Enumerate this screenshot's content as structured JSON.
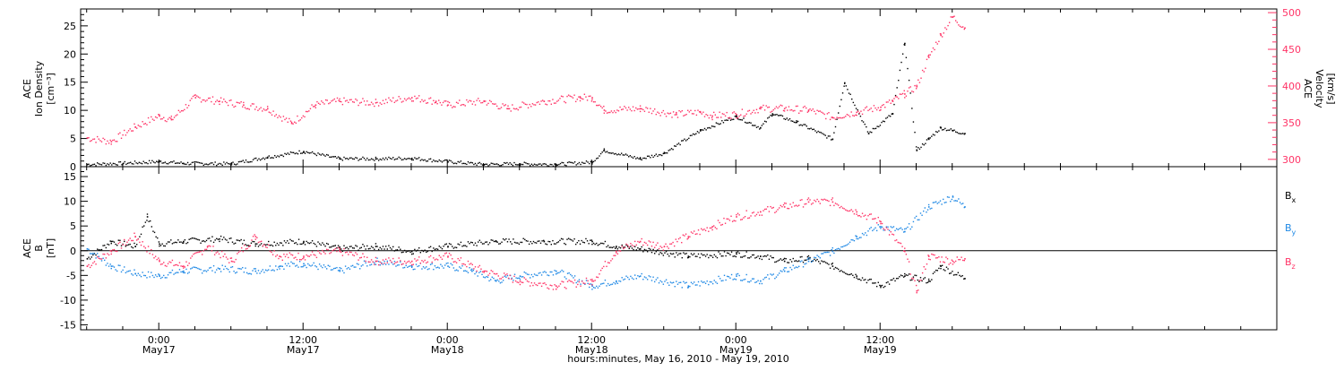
{
  "chart_data": [
    {
      "type": "scatter",
      "panel": "top",
      "ylabel_lines": [
        "ACE",
        "Ion Density",
        "[cm⁻³]"
      ],
      "ylim": [
        0,
        28
      ],
      "yticks": [
        0,
        5,
        10,
        15,
        20,
        25
      ],
      "y2label_lines": [
        "ACE",
        "Velocity",
        "[km/s]"
      ],
      "y2lim": [
        290,
        505
      ],
      "y2ticks": [
        300,
        350,
        400,
        450,
        500
      ],
      "xlim_hours": [
        -6.5,
        93
      ],
      "series": [
        {
          "name": "",
          "axis": "left",
          "color": "#000000",
          "x": [
            -6,
            -3,
            0,
            2,
            6,
            9,
            12,
            15,
            18,
            21,
            24,
            27,
            30,
            33,
            36,
            37,
            40,
            42,
            45,
            48,
            50,
            51,
            53,
            56,
            57,
            59,
            61,
            62,
            63,
            64,
            65,
            66,
            67
          ],
          "y": [
            0.5,
            0.7,
            1.0,
            0.7,
            0.6,
            1.8,
            2.8,
            1.5,
            1.5,
            1.6,
            1.0,
            0.5,
            0.6,
            0.5,
            0.9,
            3.0,
            1.5,
            2.5,
            6.5,
            9.0,
            7.0,
            9.5,
            8.0,
            5.0,
            15.0,
            6.0,
            9.5,
            22.0,
            3.0,
            5.0,
            7.0,
            6.5,
            6.0
          ]
        },
        {
          "name": "",
          "axis": "right",
          "color": "#ff3366",
          "x": [
            -6,
            -4,
            -2,
            0,
            1,
            3,
            5,
            7,
            9,
            11,
            13,
            15,
            18,
            21,
            23,
            24,
            27,
            29,
            32,
            35,
            36,
            37,
            40,
            43,
            45,
            46,
            48,
            50,
            52,
            54,
            56,
            58,
            60,
            61,
            62,
            63,
            64,
            65,
            66,
            67
          ],
          "y": [
            330,
            325,
            345,
            360,
            355,
            385,
            380,
            375,
            370,
            350,
            375,
            380,
            378,
            385,
            380,
            375,
            380,
            370,
            380,
            385,
            385,
            368,
            370,
            362,
            365,
            360,
            362,
            370,
            370,
            368,
            358,
            365,
            372,
            380,
            390,
            400,
            440,
            470,
            495,
            480
          ]
        }
      ]
    },
    {
      "type": "scatter",
      "panel": "bottom",
      "ylabel_lines": [
        "ACE",
        "B",
        "[nT]"
      ],
      "ylim": [
        -16,
        17
      ],
      "yticks": [
        -15,
        -10,
        -5,
        0,
        5,
        10,
        15
      ],
      "xlim_hours": [
        -6.5,
        93
      ],
      "series": [
        {
          "name": "Bx",
          "color": "#000000",
          "x": [
            -6,
            -4,
            -2,
            -1,
            0,
            2,
            5,
            8,
            12,
            15,
            18,
            21,
            24,
            28,
            32,
            36,
            38,
            40,
            44,
            48,
            50,
            52,
            54,
            56,
            58,
            60,
            62,
            64,
            65,
            67
          ],
          "y": [
            -1.5,
            2.0,
            1.0,
            7.0,
            1.5,
            2.0,
            2.5,
            1.5,
            2.0,
            0.5,
            1.0,
            0.0,
            1.0,
            2.0,
            2.0,
            2.0,
            1.0,
            0.5,
            -1.0,
            -0.5,
            -1.0,
            -2.0,
            -1.5,
            -3.0,
            -5.0,
            -7.0,
            -5.0,
            -6.0,
            -3.0,
            -5.5
          ]
        },
        {
          "name": "By",
          "color": "#1e88e5",
          "x": [
            -6,
            -4,
            -2,
            0,
            2,
            5,
            8,
            10,
            12,
            15,
            18,
            21,
            24,
            26,
            28,
            30,
            33,
            36,
            38,
            40,
            44,
            48,
            50,
            52,
            54,
            56,
            58,
            60,
            62,
            64,
            66,
            67
          ],
          "y": [
            0.5,
            -3.0,
            -4.5,
            -5.0,
            -4.0,
            -3.5,
            -4.0,
            -3.0,
            -2.5,
            -4.0,
            -2.0,
            -3.0,
            -3.0,
            -4.0,
            -6.0,
            -5.0,
            -4.0,
            -7.0,
            -6.0,
            -5.0,
            -7.0,
            -5.0,
            -6.0,
            -4.0,
            -2.0,
            0.0,
            3.0,
            5.0,
            4.0,
            9.0,
            11.0,
            9.0
          ]
        },
        {
          "name": "Bz",
          "color": "#ff3366",
          "x": [
            -6,
            -4,
            -2,
            0,
            2,
            4,
            6,
            8,
            10,
            12,
            15,
            18,
            21,
            24,
            27,
            30,
            33,
            36,
            38,
            40,
            42,
            44,
            46,
            48,
            50,
            52,
            54,
            56,
            58,
            60,
            62,
            63,
            64,
            66,
            67
          ],
          "y": [
            -3.0,
            0.0,
            3.0,
            -2.0,
            -3.0,
            1.0,
            -2.0,
            3.0,
            -1.0,
            -1.0,
            0.0,
            -2.0,
            -2.0,
            -1.0,
            -4.0,
            -6.0,
            -7.0,
            -6.0,
            0.0,
            2.0,
            1.0,
            3.0,
            5.0,
            7.0,
            8.0,
            9.0,
            10.0,
            10.0,
            8.0,
            6.0,
            0.0,
            -8.0,
            -1.0,
            -2.0,
            -1.5
          ]
        }
      ],
      "legend_placement": "right"
    }
  ],
  "x_axis": {
    "ticks": [
      {
        "label_time": "0:00",
        "label_date": "May17",
        "hour": 0
      },
      {
        "label_time": "12:00",
        "label_date": "May17",
        "hour": 12
      },
      {
        "label_time": "0:00",
        "label_date": "May18",
        "hour": 24
      },
      {
        "label_time": "12:00",
        "label_date": "May18",
        "hour": 36
      },
      {
        "label_time": "0:00",
        "label_date": "May19",
        "hour": 48
      },
      {
        "label_time": "12:00",
        "label_date": "May19",
        "hour": 60
      }
    ],
    "xlabel": "hours:minutes, May 16, 2010 - May 19, 2010"
  },
  "legend": [
    {
      "base": "B",
      "sub": "x",
      "color": "#000000"
    },
    {
      "base": "B",
      "sub": "y",
      "color": "#1e88e5"
    },
    {
      "base": "B",
      "sub": "z",
      "color": "#ff3366"
    }
  ],
  "colors": {
    "density": "#000000",
    "velocity": "#ff3366",
    "bx": "#000000",
    "by": "#1e88e5",
    "bz": "#ff3366"
  }
}
